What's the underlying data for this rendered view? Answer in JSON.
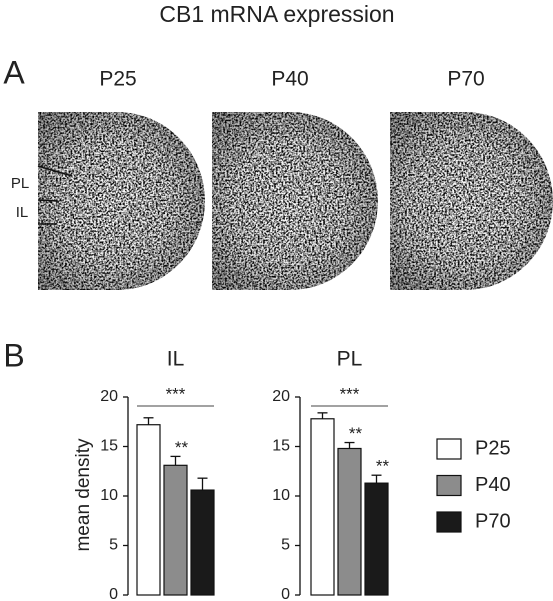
{
  "title": "CB1 mRNA expression",
  "panel_a": {
    "label": "A",
    "images": [
      {
        "label": "P25"
      },
      {
        "label": "P40"
      },
      {
        "label": "P70"
      }
    ],
    "regions": [
      "PL",
      "IL"
    ]
  },
  "panel_b": {
    "label": "B"
  },
  "chart_data": [
    {
      "type": "bar",
      "title": "IL",
      "y_label": "mean density",
      "ylim": [
        0,
        20
      ],
      "yticks": [
        0,
        5,
        10,
        15,
        20
      ],
      "series": [
        {
          "name": "P25",
          "color": "#ffffff",
          "values": [
            17.2
          ],
          "errors": [
            0.7
          ]
        },
        {
          "name": "P40",
          "color": "#8c8c8c",
          "values": [
            13.1
          ],
          "errors": [
            0.9
          ]
        },
        {
          "name": "P70",
          "color": "#1a1a1a",
          "values": [
            10.6
          ],
          "errors": [
            1.2
          ]
        }
      ],
      "annotations": [
        {
          "text": "***",
          "from": "P25",
          "to": "P70"
        },
        {
          "text": "**",
          "at": "P40"
        }
      ]
    },
    {
      "type": "bar",
      "title": "PL",
      "ylim": [
        0,
        20
      ],
      "yticks": [
        0,
        5,
        10,
        15,
        20
      ],
      "legend": "right",
      "series": [
        {
          "name": "P25",
          "color": "#ffffff",
          "values": [
            17.8
          ],
          "errors": [
            0.6
          ]
        },
        {
          "name": "P40",
          "color": "#8c8c8c",
          "values": [
            14.8
          ],
          "errors": [
            0.6
          ]
        },
        {
          "name": "P70",
          "color": "#1a1a1a",
          "values": [
            11.3
          ],
          "errors": [
            0.8
          ]
        }
      ],
      "annotations": [
        {
          "text": "***",
          "from": "P25",
          "to": "P70"
        },
        {
          "text": "**",
          "at": "P40"
        },
        {
          "text": "**",
          "at": "P70"
        }
      ]
    }
  ]
}
